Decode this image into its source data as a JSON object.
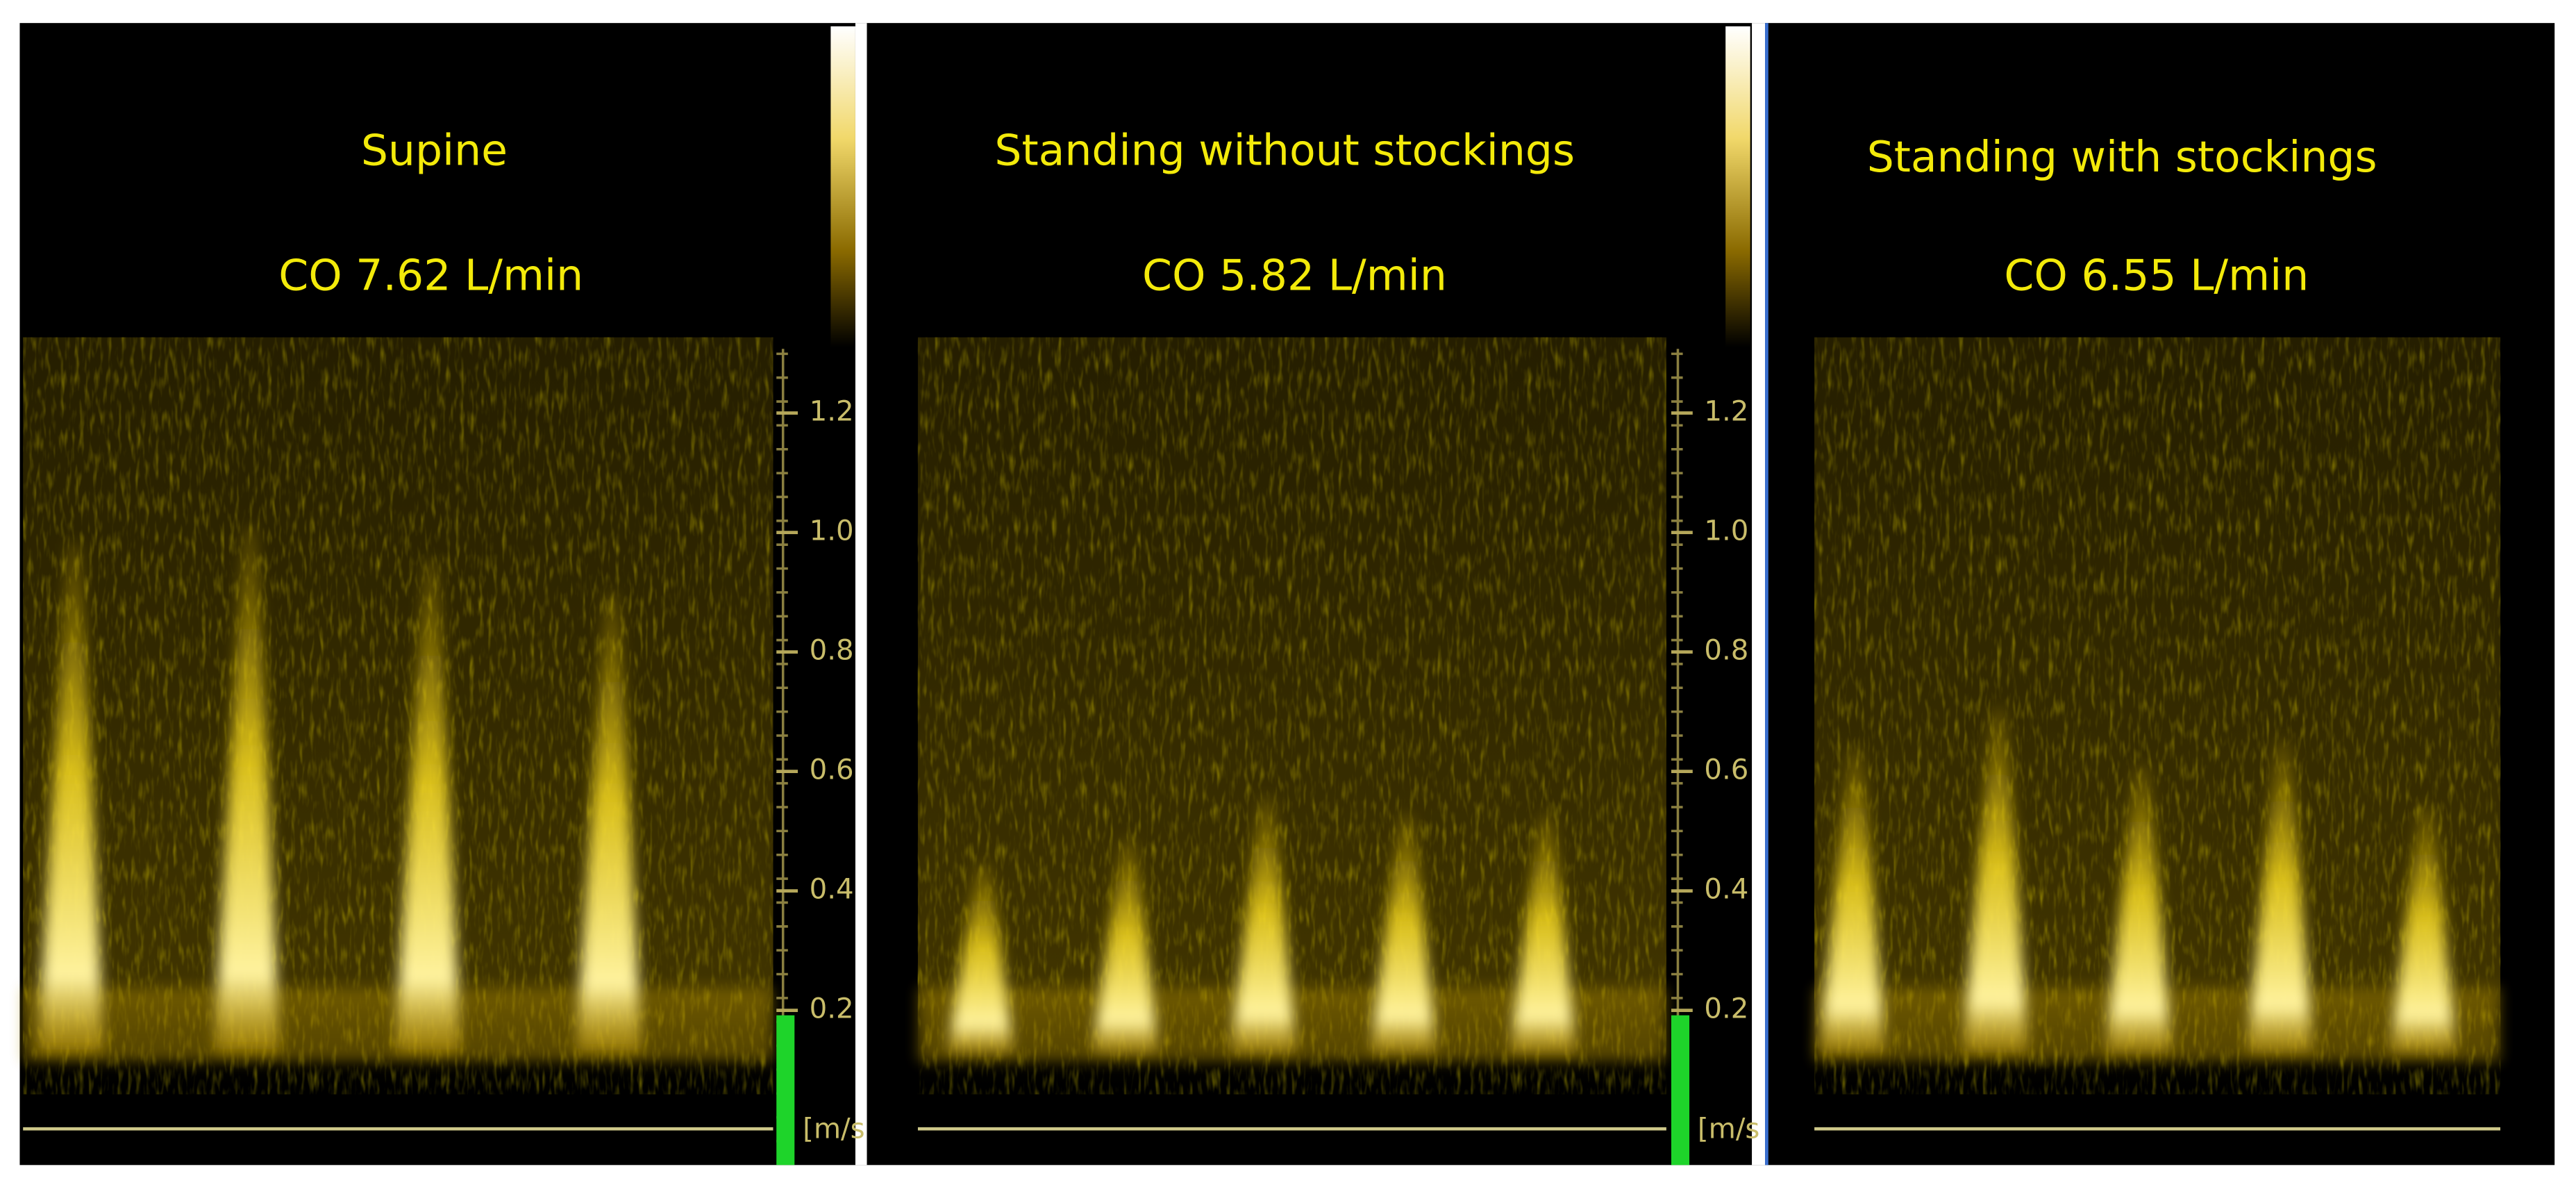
{
  "panels": [
    {
      "title": "Supine",
      "co": "CO 7.62 L/min",
      "scale": {
        "ticks": [
          "1.2",
          "1.0",
          "0.8",
          "0.6",
          "0.4",
          "0.2"
        ],
        "unit": "[m/s"
      }
    },
    {
      "title": "Standing without stockings",
      "co": "CO 5.82 L/min",
      "scale": {
        "ticks": [
          "1.2",
          "1.0",
          "0.8",
          "0.6",
          "0.4",
          "0.2"
        ],
        "unit": "[m/s"
      }
    },
    {
      "title": "Standing with stockings",
      "co": "CO 6.55 L/min"
    }
  ]
}
